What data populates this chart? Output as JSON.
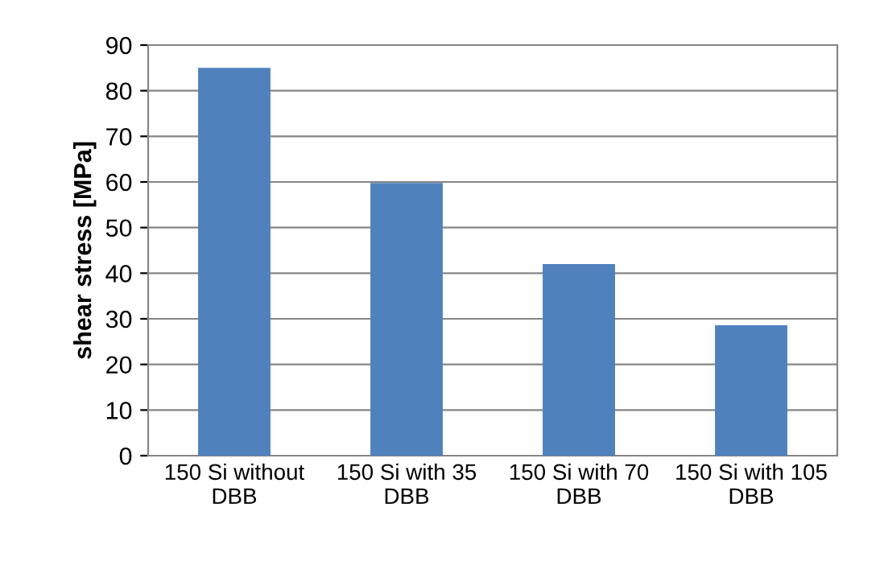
{
  "chart_data": {
    "type": "bar",
    "ylabel": "shear stress [MPa]",
    "categories": [
      "150 Si without\nDBB",
      "150 Si with 35\nDBB",
      "150 Si with 70\nDBB",
      "150 Si with 105\nDBB"
    ],
    "values": [
      85,
      59.8,
      42,
      28.6
    ],
    "color": "#4f81bd",
    "ylim": [
      0,
      90
    ],
    "yticks": [
      0,
      10,
      20,
      30,
      40,
      50,
      60,
      70,
      80,
      90
    ],
    "grid": "y",
    "legend": false
  }
}
